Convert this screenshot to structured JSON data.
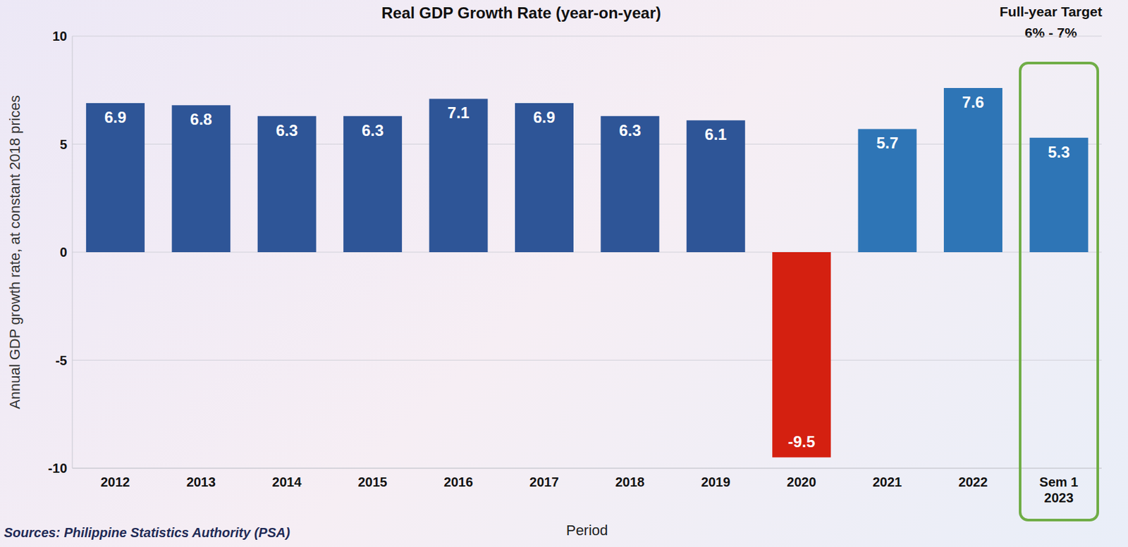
{
  "chart_data": {
    "type": "bar",
    "title": "Real GDP Growth Rate (year-on-year)",
    "x_label": "Period",
    "y_label": "Annual GDP growth rate, at constant 2018 prices",
    "source": "Sources: Philippine Statistics Authority (PSA)",
    "annotations": [
      "Full-year Target",
      "6% - 7%"
    ],
    "categories": [
      "2012",
      "2013",
      "2014",
      "2015",
      "2016",
      "2017",
      "2018",
      "2019",
      "2020",
      "2021",
      "2022",
      "Sem 1 2023"
    ],
    "values": [
      6.9,
      6.8,
      6.3,
      6.3,
      7.1,
      6.9,
      6.3,
      6.1,
      -9.5,
      5.7,
      7.6,
      5.3
    ],
    "colors": [
      "#2e5597",
      "#2e5597",
      "#2e5597",
      "#2e5597",
      "#2e5597",
      "#2e5597",
      "#2e5597",
      "#2e5597",
      "#d42010",
      "#2e75b6",
      "#2e75b6",
      "#2e75b6"
    ],
    "ylim": [
      -10,
      10
    ],
    "yticks": [
      -10,
      -5,
      0,
      5,
      10
    ],
    "grid": true,
    "data_labels": true
  }
}
